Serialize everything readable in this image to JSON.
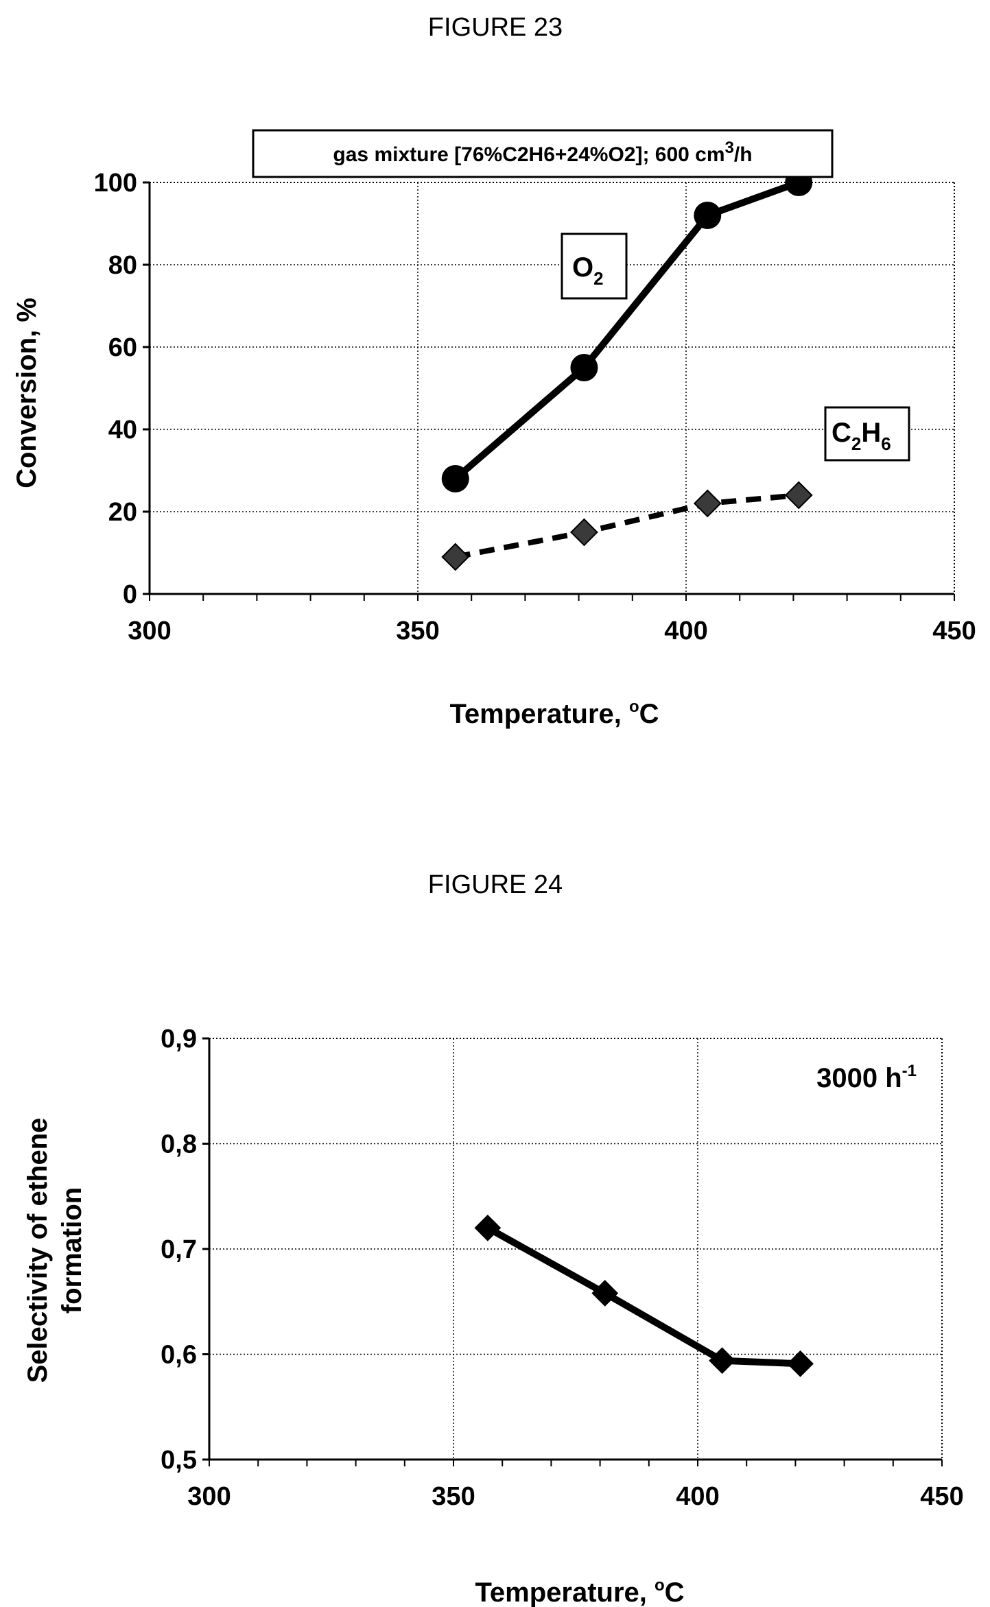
{
  "figure23": {
    "title": "FIGURE 23",
    "annotation": {
      "main": "gas mixture [76%C2H6+24%O2]; 600 cm",
      "sup": "3",
      "tail": "/h"
    },
    "ylabel": "Conversion, %",
    "xlabel_main": "Temperature, ",
    "xlabel_sup": "o",
    "xlabel_tail": "C",
    "series_labels": {
      "o2": {
        "main": "O",
        "sub": "2"
      },
      "c2h6": {
        "c": "C",
        "sub1": "2",
        "h": "H",
        "sub2": "6"
      }
    }
  },
  "figure24": {
    "title": "FIGURE 24",
    "annotation": {
      "main": "3000 h",
      "sup": "-1"
    },
    "ylabel_line1": "Selectivity of ethene",
    "ylabel_line2": "formation",
    "xlabel_main": "Temperature, ",
    "xlabel_sup": "o",
    "xlabel_tail": "C"
  },
  "chart_data": [
    {
      "type": "line",
      "title": "FIGURE 23",
      "xlabel": "Temperature, oC",
      "ylabel": "Conversion, %",
      "xlim": [
        300,
        450
      ],
      "ylim": [
        0,
        100
      ],
      "xticks": [
        300,
        350,
        400,
        450
      ],
      "yticks": [
        0,
        20,
        40,
        60,
        80,
        100
      ],
      "grid": true,
      "series": [
        {
          "name": "O2",
          "marker": "circle",
          "line": "solid",
          "x": [
            357,
            381,
            404,
            421
          ],
          "y": [
            28,
            55,
            92,
            100
          ]
        },
        {
          "name": "C2H6",
          "marker": "diamond",
          "line": "dashed",
          "x": [
            357,
            381,
            404,
            421
          ],
          "y": [
            9,
            15,
            22,
            24
          ]
        }
      ]
    },
    {
      "type": "line",
      "title": "FIGURE 24",
      "xlabel": "Temperature, oC",
      "ylabel": "Selectivity of ethene formation",
      "xlim": [
        300,
        450
      ],
      "ylim": [
        0.5,
        0.9
      ],
      "xticks": [
        300,
        350,
        400,
        450
      ],
      "yticks": [
        "0,5",
        "0,6",
        "0,7",
        "0,8",
        "0,9"
      ],
      "grid": true,
      "series": [
        {
          "marker": "diamond",
          "line": "solid",
          "x": [
            357,
            381,
            405,
            421
          ],
          "y": [
            0.72,
            0.658,
            0.594,
            0.591
          ]
        }
      ]
    }
  ]
}
